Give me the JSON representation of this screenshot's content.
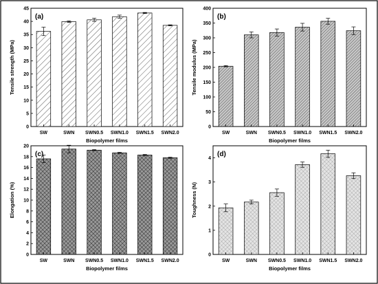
{
  "chart_data": [
    {
      "panel": "(a)",
      "type": "bar",
      "categories": [
        "SW",
        "SWN",
        "SWN0.5",
        "SWN1.0",
        "SWN1.5",
        "SWN2.0"
      ],
      "values": [
        36.2,
        39.9,
        40.6,
        41.8,
        43.2,
        38.5
      ],
      "errors": [
        1.6,
        0.3,
        0.6,
        0.6,
        0.2,
        0.2
      ],
      "xlabel": "Biopolymer films",
      "ylabel": "Tensile strength (MPa)",
      "ylim": [
        0,
        45
      ],
      "yticks": [
        0,
        5,
        10,
        15,
        20,
        25,
        30,
        35,
        40,
        45
      ],
      "pattern": "diag-sparse",
      "fill": "#ffffff"
    },
    {
      "panel": "(b)",
      "type": "bar",
      "categories": [
        "SW",
        "SWN",
        "SWN0.5",
        "SWN1.0",
        "SWN1.5",
        "SWN2.0"
      ],
      "values": [
        204,
        310,
        318,
        336,
        356,
        324
      ],
      "errors": [
        2,
        10,
        12,
        13,
        10,
        13
      ],
      "xlabel": "Biopolymer films",
      "ylabel": "Tensile modulus (MPa)",
      "ylim": [
        0,
        400
      ],
      "yticks": [
        0,
        50,
        100,
        150,
        200,
        250,
        300,
        350,
        400
      ],
      "pattern": "diag-dense",
      "fill": "#bdbdbd"
    },
    {
      "panel": "(c)",
      "type": "bar",
      "categories": [
        "SW",
        "SWN",
        "SWN0.5",
        "SWN1.0",
        "SWN1.5",
        "SWN2.0"
      ],
      "values": [
        17.6,
        19.4,
        19.2,
        18.7,
        18.3,
        17.8
      ],
      "errors": [
        0.7,
        0.7,
        0.1,
        0.1,
        0.1,
        0.1
      ],
      "xlabel": "Biopolymer films",
      "ylabel": "Elongation (%)",
      "ylim": [
        0,
        20
      ],
      "yticks": [
        0,
        2,
        4,
        6,
        8,
        10,
        12,
        14,
        16,
        18,
        20
      ],
      "pattern": "crosshatch",
      "fill": "#6d6d6d"
    },
    {
      "panel": "(d)",
      "type": "bar",
      "categories": [
        "SW",
        "SWN",
        "SWN0.5",
        "SWN1.0",
        "SWN1.5",
        "SWN2.0"
      ],
      "values": [
        1.93,
        2.17,
        2.56,
        3.72,
        4.17,
        3.26
      ],
      "errors": [
        0.16,
        0.08,
        0.15,
        0.11,
        0.15,
        0.12
      ],
      "xlabel": "Biopolymer films",
      "ylabel": "Toughness (N)",
      "ylim": [
        0,
        4.5
      ],
      "yticks": [
        0,
        1,
        2,
        3,
        4
      ],
      "pattern": "crosshatch-light",
      "fill": "#d9d9d9"
    }
  ]
}
